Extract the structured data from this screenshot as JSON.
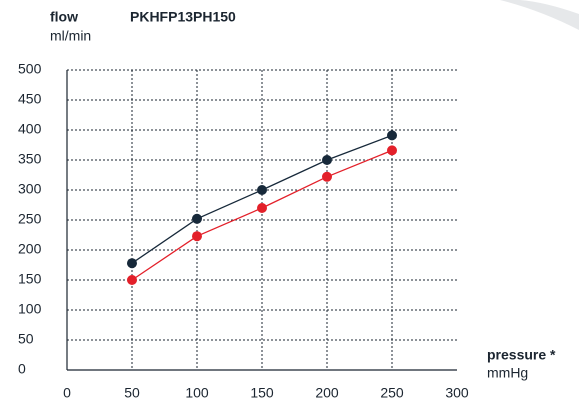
{
  "chart_data": {
    "type": "line",
    "title": "PKHFP13PH150",
    "y_label": "flow",
    "y_unit": "ml/min",
    "x_label": "pressure *",
    "x_unit": "mmHg",
    "x": [
      50,
      100,
      150,
      200,
      250
    ],
    "series": [
      {
        "color": "#17293a",
        "values": [
          178,
          252,
          300,
          350,
          391
        ]
      },
      {
        "color": "#e3202a",
        "values": [
          150,
          223,
          270,
          322,
          366
        ]
      }
    ],
    "xlim": [
      0,
      300
    ],
    "ylim": [
      0,
      500
    ],
    "xticks": [
      0,
      50,
      100,
      150,
      200,
      250,
      300
    ],
    "yticks": [
      0,
      50,
      100,
      150,
      200,
      250,
      300,
      350,
      400,
      450,
      500
    ],
    "grid": true
  }
}
